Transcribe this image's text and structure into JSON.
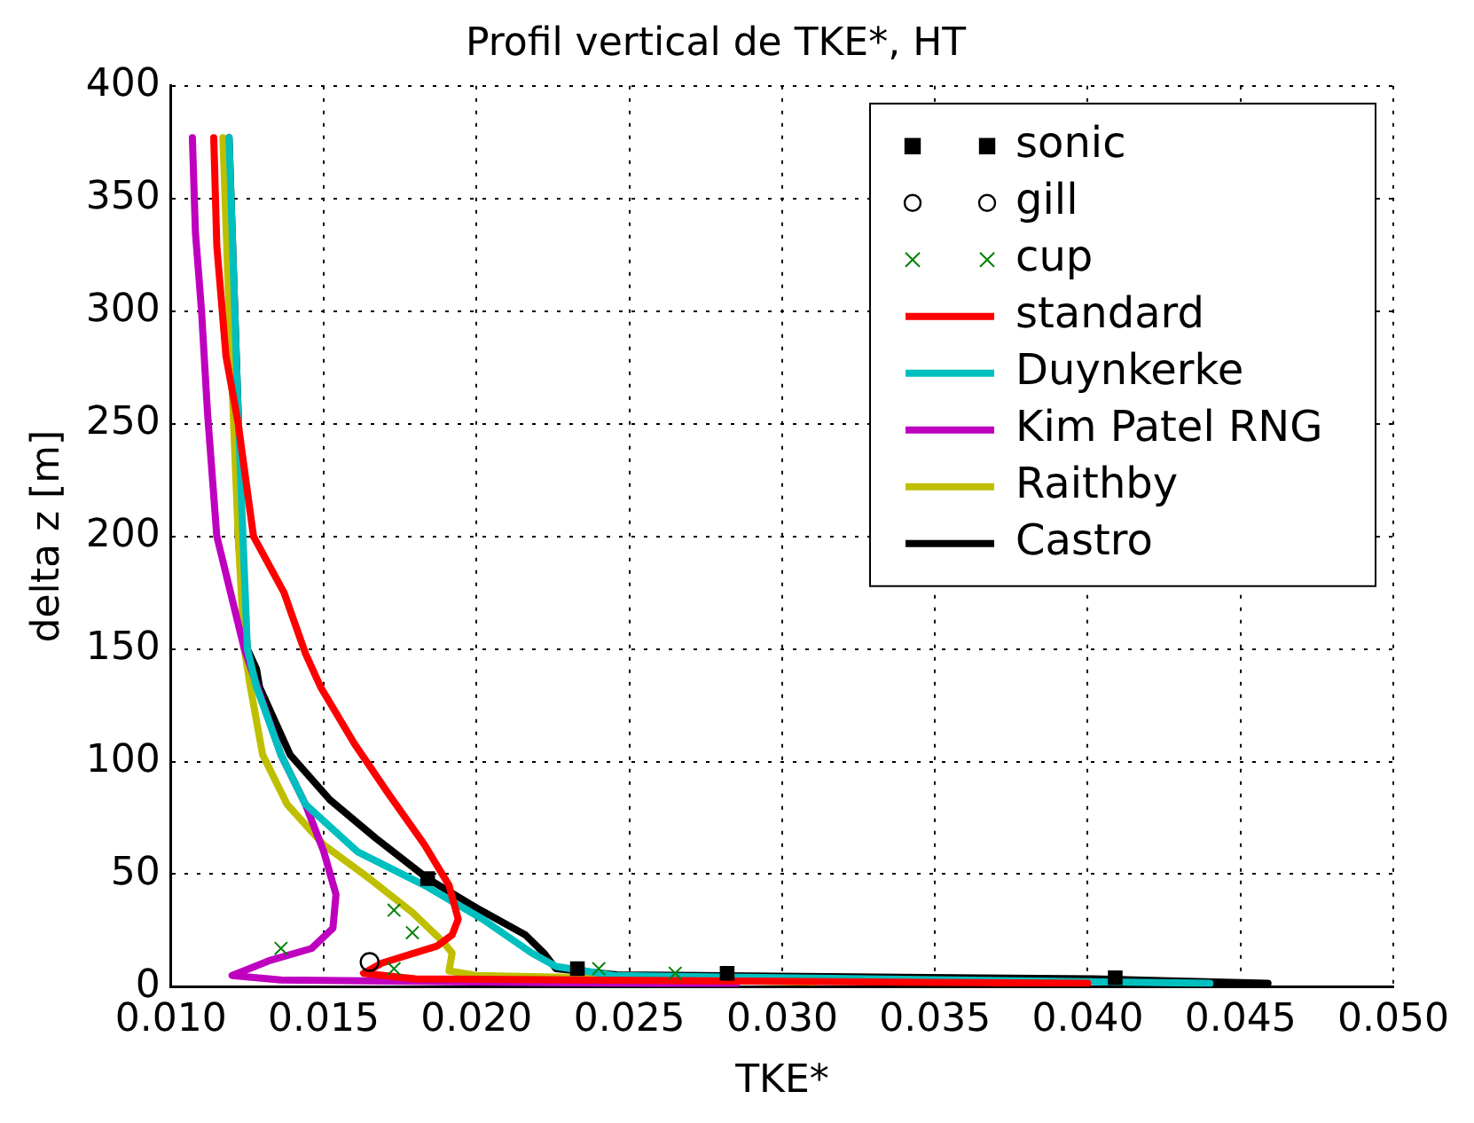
{
  "chart_data": {
    "type": "line",
    "title": "Profil vertical de TKE*, HT",
    "xlabel": "TKE*",
    "ylabel": "delta z [m]",
    "xlim": [
      0.01,
      0.05
    ],
    "xticks": [
      {
        "value": 0.01,
        "label": "0.010"
      },
      {
        "value": 0.015,
        "label": "0.015"
      },
      {
        "value": 0.02,
        "label": "0.020"
      },
      {
        "value": 0.025,
        "label": "0.025"
      },
      {
        "value": 0.03,
        "label": "0.030"
      },
      {
        "value": 0.035,
        "label": "0.035"
      },
      {
        "value": 0.04,
        "label": "0.040"
      },
      {
        "value": 0.045,
        "label": "0.045"
      },
      {
        "value": 0.05,
        "label": "0.050"
      }
    ],
    "ylim": [
      0,
      400
    ],
    "yticks": [
      0,
      50,
      100,
      150,
      200,
      250,
      300,
      350,
      400
    ],
    "grid": true,
    "legend": "top right",
    "line_style": "solid",
    "series": [
      {
        "name": "sonic",
        "type": "scatter",
        "marker": "square",
        "color": "#000000",
        "x": [
          0.0184,
          0.0233,
          0.0282,
          0.0409
        ],
        "values": [
          48,
          8,
          6,
          4
        ]
      },
      {
        "name": "gill",
        "type": "scatter",
        "marker": "circle",
        "color": "#000000",
        "x": [
          0.0165
        ],
        "values": [
          11
        ]
      },
      {
        "name": "cup",
        "type": "scatter",
        "marker": "cross",
        "color": "#008000",
        "x": [
          0.0136,
          0.0173,
          0.0179,
          0.0173,
          0.024,
          0.0265
        ],
        "values": [
          17,
          34,
          24,
          8,
          8,
          6
        ]
      },
      {
        "name": "standard",
        "type": "line",
        "marker": "none",
        "color": "#ff0000",
        "x": [
          0.0114,
          0.0115,
          0.0118,
          0.0122,
          0.0127,
          0.0137,
          0.0144,
          0.0149,
          0.016,
          0.0171,
          0.0183,
          0.0191,
          0.0194,
          0.0192,
          0.0187,
          0.0169,
          0.0163,
          0.018,
          0.04
        ],
        "values": [
          377,
          329,
          280,
          250,
          200,
          175,
          148,
          133,
          108,
          86,
          63,
          45,
          30,
          23,
          18,
          10.5,
          6,
          3.5,
          1.5
        ]
      },
      {
        "name": "Duynkerke",
        "type": "line",
        "marker": "none",
        "color": "#00bfbf",
        "x": [
          0.0119,
          0.0122,
          0.0125,
          0.0128,
          0.0136,
          0.0144,
          0.0161,
          0.0183,
          0.0202,
          0.0218,
          0.0226,
          0.0245,
          0.044
        ],
        "values": [
          377,
          254,
          150,
          133,
          103,
          81,
          60,
          45,
          30,
          15,
          9,
          5,
          1.5
        ]
      },
      {
        "name": "Kim Patel RNG",
        "type": "line",
        "marker": "none",
        "color": "#bf00bf",
        "x": [
          0.0107,
          0.0108,
          0.011,
          0.0112,
          0.0115,
          0.0124,
          0.0136,
          0.0144,
          0.015,
          0.0154,
          0.0153,
          0.0146,
          0.0132,
          0.012,
          0.0136,
          0.0285
        ],
        "values": [
          377,
          335,
          300,
          254,
          200,
          150,
          103,
          81,
          60,
          41,
          26,
          17,
          11.5,
          5,
          3,
          1
        ]
      },
      {
        "name": "Raithby",
        "type": "line",
        "marker": "none",
        "color": "#bfbf00",
        "x": [
          0.0117,
          0.0119,
          0.0122,
          0.0124,
          0.0126,
          0.013,
          0.0138,
          0.015,
          0.0165,
          0.0179,
          0.0189,
          0.0192,
          0.0191,
          0.02,
          0.031
        ],
        "values": [
          377,
          300,
          200,
          150,
          133,
          103,
          81,
          63,
          48,
          33,
          20,
          15,
          7,
          5,
          2
        ]
      },
      {
        "name": "Castro",
        "type": "line",
        "marker": "none",
        "color": "#000000",
        "x": [
          0.0119,
          0.0122,
          0.0122,
          0.0125,
          0.0128,
          0.0129,
          0.0139,
          0.0152,
          0.0167,
          0.0184,
          0.02,
          0.0216,
          0.0222,
          0.0226,
          0.0246,
          0.0402,
          0.0459
        ],
        "values": [
          377,
          254,
          200,
          150,
          141,
          133,
          103,
          83,
          66,
          48,
          35,
          23,
          15,
          8,
          5.3,
          3.5,
          1.5
        ]
      }
    ]
  }
}
